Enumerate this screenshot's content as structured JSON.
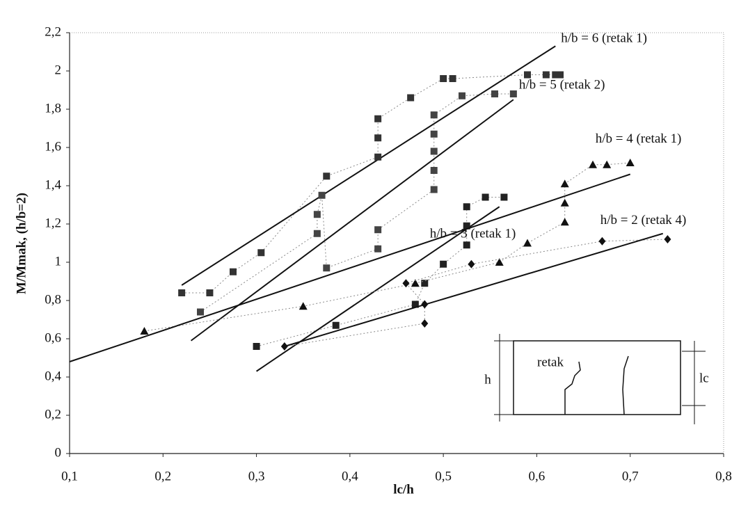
{
  "chart_data": {
    "type": "scatter",
    "xlabel": "lc/h",
    "ylabel": "M/Mmak, (h/b=2)",
    "xlim": [
      0.1,
      0.8
    ],
    "ylim": [
      0,
      2.2
    ],
    "xticks": [
      {
        "value": 0.1,
        "label": "0,1"
      },
      {
        "value": 0.2,
        "label": "0,2"
      },
      {
        "value": 0.3,
        "label": "0,3"
      },
      {
        "value": 0.4,
        "label": "0,4"
      },
      {
        "value": 0.5,
        "label": "0,5"
      },
      {
        "value": 0.6,
        "label": "0,6"
      },
      {
        "value": 0.7,
        "label": "0,7"
      },
      {
        "value": 0.8,
        "label": "0,8"
      }
    ],
    "yticks": [
      0,
      {
        "value": 0.2,
        "label": "0,2"
      },
      {
        "value": 0.4,
        "label": "0,4"
      },
      {
        "value": 0.6,
        "label": "0,6"
      },
      {
        "value": 0.8,
        "label": "0,8"
      },
      1,
      {
        "value": 1.2,
        "label": "1,2"
      },
      {
        "value": 1.4,
        "label": "1,4"
      },
      {
        "value": 1.6,
        "label": "1,6"
      },
      {
        "value": 1.8,
        "label": "1,8"
      },
      2,
      {
        "value": 2.2,
        "label": "2,2"
      }
    ],
    "grid": false,
    "series": [
      {
        "name": "h/b = 6 (retak 1)",
        "color": "#333333",
        "marker": "square",
        "x": [
          0.22,
          0.25,
          0.275,
          0.305,
          0.375,
          0.43,
          0.43,
          0.43,
          0.465,
          0.5,
          0.51,
          0.59,
          0.61,
          0.62,
          0.625
        ],
        "values": [
          0.84,
          0.84,
          0.95,
          1.05,
          1.45,
          1.55,
          1.65,
          1.75,
          1.86,
          1.96,
          1.96,
          1.98,
          1.98,
          1.98,
          1.98
        ],
        "trend": {
          "x": [
            0.22,
            0.62
          ],
          "y": [
            0.88,
            2.13
          ]
        }
      },
      {
        "name": "h/b = 5 (retak 2)",
        "color": "#444444",
        "marker": "square",
        "x": [
          0.24,
          0.365,
          0.365,
          0.37,
          0.375,
          0.43,
          0.43,
          0.49,
          0.49,
          0.49,
          0.49,
          0.49,
          0.52,
          0.555,
          0.575
        ],
        "values": [
          0.74,
          1.15,
          1.25,
          1.35,
          0.97,
          1.07,
          1.17,
          1.38,
          1.48,
          1.58,
          1.67,
          1.77,
          1.87,
          1.88,
          1.88
        ],
        "trend": {
          "x": [
            0.23,
            0.575
          ],
          "y": [
            0.59,
            1.85
          ]
        }
      },
      {
        "name": "h/b = 3 (retak 1)",
        "color": "#222222",
        "marker": "square",
        "x": [
          0.3,
          0.385,
          0.47,
          0.48,
          0.5,
          0.525,
          0.525,
          0.525,
          0.545,
          0.565
        ],
        "values": [
          0.56,
          0.67,
          0.78,
          0.89,
          0.99,
          1.09,
          1.19,
          1.29,
          1.34,
          1.34
        ],
        "trend": {
          "x": [
            0.3,
            0.56
          ],
          "y": [
            0.43,
            1.29
          ]
        }
      },
      {
        "name": "h/b = 4 (retak 1)",
        "color": "#111111",
        "marker": "triangle",
        "x": [
          0.18,
          0.35,
          0.47,
          0.56,
          0.59,
          0.63,
          0.63,
          0.63,
          0.66,
          0.675,
          0.7
        ],
        "values": [
          0.64,
          0.77,
          0.89,
          1.0,
          1.1,
          1.21,
          1.31,
          1.41,
          1.51,
          1.51,
          1.52
        ],
        "trend": {
          "x": [
            0.1,
            0.7
          ],
          "y": [
            0.48,
            1.46
          ]
        }
      },
      {
        "name": "h/b = 2 (retak 4)",
        "color": "#111111",
        "marker": "diamond",
        "x": [
          0.33,
          0.48,
          0.48,
          0.46,
          0.53,
          0.67,
          0.74
        ],
        "values": [
          0.56,
          0.68,
          0.78,
          0.89,
          0.99,
          1.11,
          1.12
        ],
        "trend": {
          "x": [
            0.33,
            0.735
          ],
          "y": [
            0.56,
            1.15
          ]
        }
      }
    ],
    "annotations": [
      "retak",
      "h",
      "lc"
    ]
  }
}
